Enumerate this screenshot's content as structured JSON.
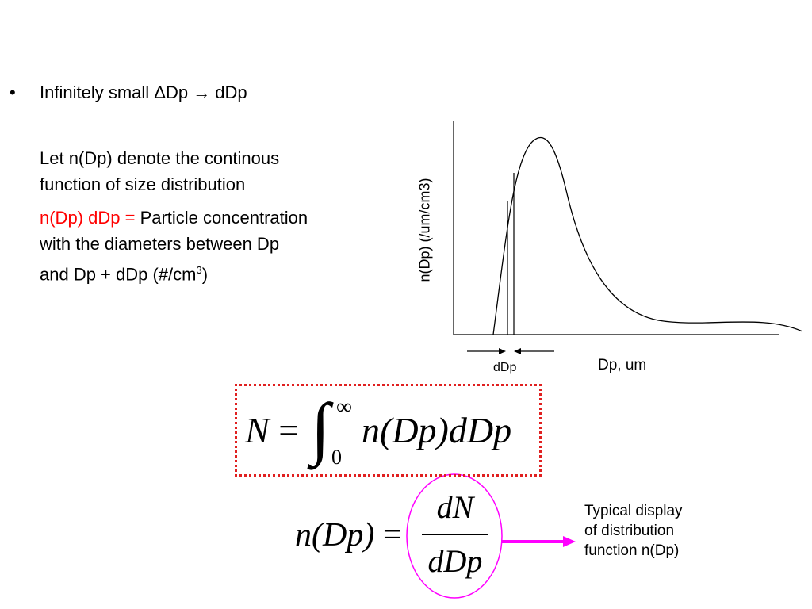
{
  "bullet": {
    "symbol": "•",
    "text": "Infinitely small ΔDp → dDp"
  },
  "paragraph1": {
    "line1": "Let n(Dp) denote the continous",
    "line2": "function of size distribution"
  },
  "paragraph2": {
    "red_part": "n(Dp) dDp = ",
    "line1_rest": "Particle concentration",
    "line2": "with the diameters between Dp",
    "line3_pre": "and Dp + dDp (#/cm",
    "line3_sup": "3",
    "line3_post": ")"
  },
  "graph": {
    "y_axis_label": "n(Dp) (/um/cm3)",
    "x_axis_label": "Dp, um",
    "interval_label": "dDp"
  },
  "formula1": {
    "lhs": "N",
    "eq": "=",
    "integral": "∫",
    "upper_limit": "∞",
    "lower_limit": "0",
    "integrand": "n(Dp)dDp"
  },
  "formula2": {
    "lhs": "n(Dp)",
    "eq": "=",
    "numerator": "dN",
    "denominator": "dDp"
  },
  "caption": {
    "line1": "Typical display",
    "line2": "of distribution",
    "line3": "function n(Dp)"
  },
  "colors": {
    "emphasis_text": "#ff0000",
    "formula_box_border": "#e02020",
    "highlight_ellipse": "#ff00ff",
    "arrow": "#ff00ff"
  }
}
